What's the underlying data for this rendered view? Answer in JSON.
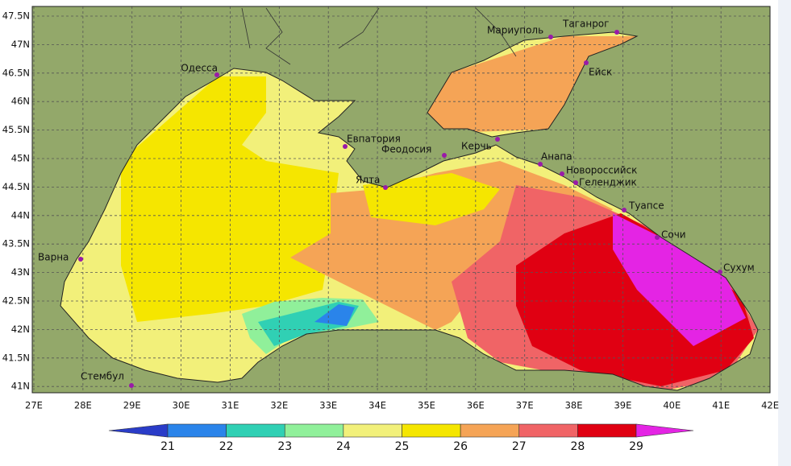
{
  "map": {
    "lat_labels": [
      "47.5N",
      "47N",
      "46.5N",
      "46N",
      "45.5N",
      "45N",
      "44.5N",
      "44N",
      "43.5N",
      "43N",
      "42.5N",
      "42N",
      "41.5N",
      "41N"
    ],
    "lon_labels": [
      "27E",
      "28E",
      "29E",
      "30E",
      "31E",
      "32E",
      "33E",
      "34E",
      "35E",
      "36E",
      "37E",
      "38E",
      "39E",
      "40E",
      "41E",
      "42E"
    ],
    "cities": [
      "Одесса",
      "Мариуполь",
      "Таганрог",
      "Ейск",
      "Евпатория",
      "Феодосия",
      "Керчь",
      "Анапа",
      "Новороссийск",
      "Геленджик",
      "Ялта",
      "Туапсе",
      "Сочи",
      "Сухум",
      "Варна",
      "Стембул"
    ],
    "colorbar": {
      "labels": [
        21,
        22,
        23,
        24,
        25,
        26,
        27,
        28,
        29
      ],
      "colors": [
        "#2a3cc8",
        "#2a84ea",
        "#30d0b4",
        "#90f09a",
        "#f2f07a",
        "#f5e600",
        "#f5a456",
        "#f06466",
        "#e00012",
        "#e424e4"
      ]
    }
  }
}
